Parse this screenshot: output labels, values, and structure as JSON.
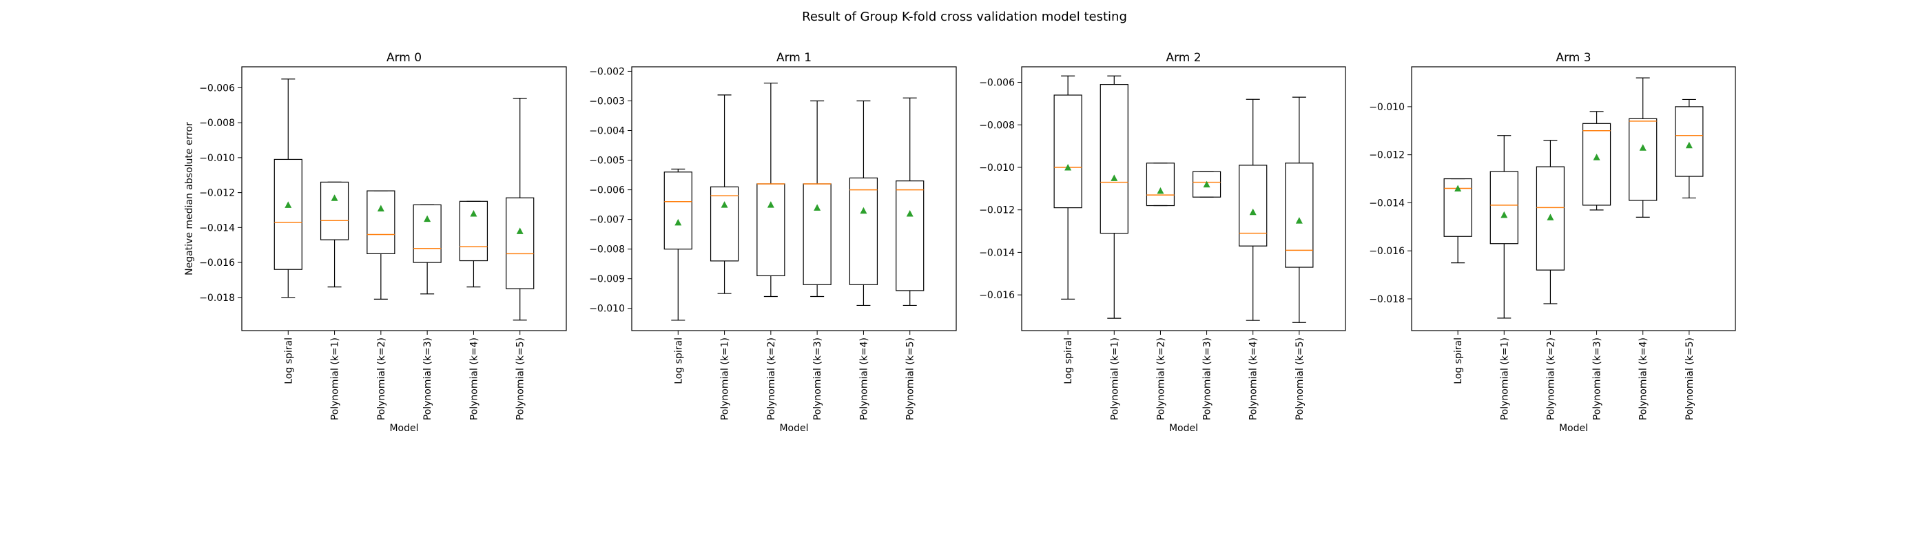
{
  "figure": {
    "title": "Result of Group K-fold cross validation model testing"
  },
  "chart_data": [
    {
      "type": "box",
      "title": "Arm 0",
      "xlabel": "Model",
      "ylabel": "Negative median absolute error",
      "ylim": [
        -0.0199,
        -0.0048
      ],
      "yticks": [
        -0.006,
        -0.008,
        -0.01,
        -0.012,
        -0.014,
        -0.016,
        -0.018
      ],
      "ytick_labels": [
        "−0.006",
        "−0.008",
        "−0.010",
        "−0.012",
        "−0.014",
        "−0.016",
        "−0.018"
      ],
      "categories": [
        "Log spiral",
        "Polynomial (k=1)",
        "Polynomial (k=2)",
        "Polynomial (k=3)",
        "Polynomial (k=4)",
        "Polynomial (k=5)"
      ],
      "boxes": [
        {
          "whislo": -0.018,
          "q1": -0.0164,
          "med": -0.0137,
          "q3": -0.0101,
          "whishi": -0.0055,
          "mean": -0.0127
        },
        {
          "whislo": -0.0174,
          "q1": -0.0147,
          "med": -0.0136,
          "q3": -0.0114,
          "whishi": -0.0114,
          "mean": -0.0123
        },
        {
          "whislo": -0.0181,
          "q1": -0.0155,
          "med": -0.0144,
          "q3": -0.0119,
          "whishi": -0.0119,
          "mean": -0.0129
        },
        {
          "whislo": -0.0178,
          "q1": -0.016,
          "med": -0.0152,
          "q3": -0.0127,
          "whishi": -0.0127,
          "mean": -0.0135
        },
        {
          "whislo": -0.0174,
          "q1": -0.0159,
          "med": -0.0151,
          "q3": -0.0125,
          "whishi": -0.0125,
          "mean": -0.0132
        },
        {
          "whislo": -0.0193,
          "q1": -0.0175,
          "med": -0.0155,
          "q3": -0.0123,
          "whishi": -0.0066,
          "mean": -0.0142
        }
      ]
    },
    {
      "type": "box",
      "title": "Arm 1",
      "xlabel": "Model",
      "ylabel": "",
      "ylim": [
        -0.01075,
        -0.00185
      ],
      "yticks": [
        -0.002,
        -0.003,
        -0.004,
        -0.005,
        -0.006,
        -0.007,
        -0.008,
        -0.009,
        -0.01
      ],
      "ytick_labels": [
        "−0.002",
        "−0.003",
        "−0.004",
        "−0.005",
        "−0.006",
        "−0.007",
        "−0.008",
        "−0.009",
        "−0.010"
      ],
      "categories": [
        "Log spiral",
        "Polynomial (k=1)",
        "Polynomial (k=2)",
        "Polynomial (k=3)",
        "Polynomial (k=4)",
        "Polynomial (k=5)"
      ],
      "boxes": [
        {
          "whislo": -0.0104,
          "q1": -0.008,
          "med": -0.0064,
          "q3": -0.0054,
          "whishi": -0.0053,
          "mean": -0.0071
        },
        {
          "whislo": -0.0095,
          "q1": -0.0084,
          "med": -0.0062,
          "q3": -0.0059,
          "whishi": -0.0028,
          "mean": -0.0065
        },
        {
          "whislo": -0.0096,
          "q1": -0.0089,
          "med": -0.0058,
          "q3": -0.0058,
          "whishi": -0.0024,
          "mean": -0.0065
        },
        {
          "whislo": -0.0096,
          "q1": -0.0092,
          "med": -0.0058,
          "q3": -0.0058,
          "whishi": -0.003,
          "mean": -0.0066
        },
        {
          "whislo": -0.0099,
          "q1": -0.0092,
          "med": -0.006,
          "q3": -0.0056,
          "whishi": -0.003,
          "mean": -0.0067
        },
        {
          "whislo": -0.0099,
          "q1": -0.0094,
          "med": -0.006,
          "q3": -0.0057,
          "whishi": -0.0029,
          "mean": -0.0068
        }
      ]
    },
    {
      "type": "box",
      "title": "Arm 2",
      "xlabel": "Model",
      "ylabel": "",
      "ylim": [
        -0.01768,
        -0.00527
      ],
      "yticks": [
        -0.006,
        -0.008,
        -0.01,
        -0.012,
        -0.014,
        -0.016
      ],
      "ytick_labels": [
        "−0.006",
        "−0.008",
        "−0.010",
        "−0.012",
        "−0.014",
        "−0.016"
      ],
      "categories": [
        "Log spiral",
        "Polynomial (k=1)",
        "Polynomial (k=2)",
        "Polynomial (k=3)",
        "Polynomial (k=4)",
        "Polynomial (k=5)"
      ],
      "boxes": [
        {
          "whislo": -0.0162,
          "q1": -0.0119,
          "med": -0.01,
          "q3": -0.0066,
          "whishi": -0.0057,
          "mean": -0.01
        },
        {
          "whislo": -0.0171,
          "q1": -0.0131,
          "med": -0.0107,
          "q3": -0.0061,
          "whishi": -0.0057,
          "mean": -0.0105
        },
        {
          "whislo": -0.0118,
          "q1": -0.0118,
          "med": -0.0113,
          "q3": -0.0098,
          "whishi": -0.0098,
          "mean": -0.0111
        },
        {
          "whislo": -0.0114,
          "q1": -0.0114,
          "med": -0.0107,
          "q3": -0.0102,
          "whishi": -0.0102,
          "mean": -0.0108
        },
        {
          "whislo": -0.0172,
          "q1": -0.0137,
          "med": -0.0131,
          "q3": -0.0099,
          "whishi": -0.0068,
          "mean": -0.0121
        },
        {
          "whislo": -0.0173,
          "q1": -0.0147,
          "med": -0.0139,
          "q3": -0.0098,
          "whishi": -0.0067,
          "mean": -0.0125
        }
      ]
    },
    {
      "type": "box",
      "title": "Arm 3",
      "xlabel": "Model",
      "ylabel": "",
      "ylim": [
        -0.01932,
        -0.00834
      ],
      "yticks": [
        -0.01,
        -0.012,
        -0.014,
        -0.016,
        -0.018
      ],
      "ytick_labels": [
        "−0.010",
        "−0.012",
        "−0.014",
        "−0.016",
        "−0.018"
      ],
      "categories": [
        "Log spiral",
        "Polynomial (k=1)",
        "Polynomial (k=2)",
        "Polynomial (k=3)",
        "Polynomial (k=4)",
        "Polynomial (k=5)"
      ],
      "boxes": [
        {
          "whislo": -0.0165,
          "q1": -0.0154,
          "med": -0.0134,
          "q3": -0.013,
          "whishi": -0.013,
          "mean": -0.0134
        },
        {
          "whislo": -0.0188,
          "q1": -0.0157,
          "med": -0.0141,
          "q3": -0.0127,
          "whishi": -0.0112,
          "mean": -0.0145
        },
        {
          "whislo": -0.0182,
          "q1": -0.0168,
          "med": -0.0142,
          "q3": -0.0125,
          "whishi": -0.0114,
          "mean": -0.0146
        },
        {
          "whislo": -0.0143,
          "q1": -0.0141,
          "med": -0.011,
          "q3": -0.0107,
          "whishi": -0.0102,
          "mean": -0.0121
        },
        {
          "whislo": -0.0146,
          "q1": -0.0139,
          "med": -0.0106,
          "q3": -0.0105,
          "whishi": -0.0088,
          "mean": -0.0117
        },
        {
          "whislo": -0.0138,
          "q1": -0.0129,
          "med": -0.0112,
          "q3": -0.01,
          "whishi": -0.0097,
          "mean": -0.0116
        }
      ]
    }
  ]
}
